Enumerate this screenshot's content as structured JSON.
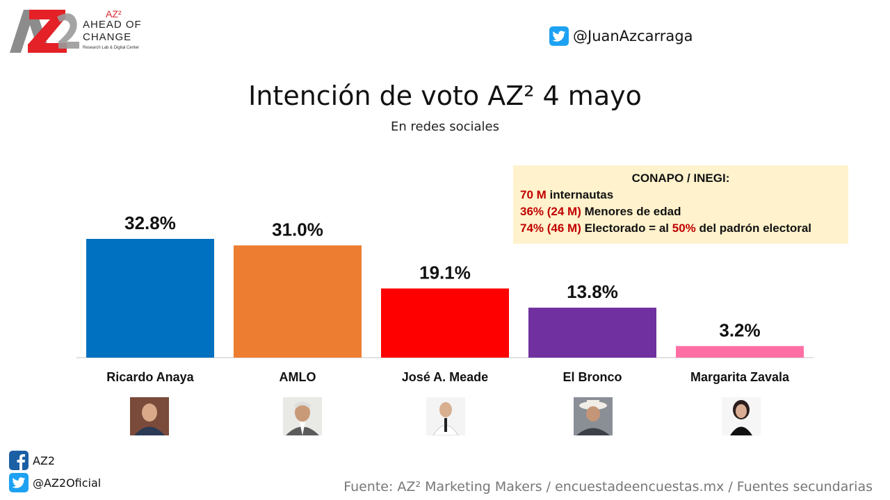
{
  "logo": {
    "mark": "AZ2",
    "superscript": "AZ²",
    "line1": "AHEAD OF",
    "line2": "CHANGE",
    "tagline": "Research Lab & Digital Center"
  },
  "twitter_top": {
    "icon": "twitter-icon",
    "handle": "@JuanAzcarraga"
  },
  "info_box": {
    "heading": "CONAPO / INEGI:",
    "rows": [
      {
        "red": "70 M",
        "text": " internautas"
      },
      {
        "red": "36% (24 M)",
        "text": " Menores de edad"
      },
      {
        "red": "74% (46 M)",
        "text": " Electorado  = al ",
        "red2": "50%",
        "text2": " del padrón  electoral"
      }
    ]
  },
  "chart_data": {
    "type": "bar",
    "title": "Intención de voto AZ² 4 mayo",
    "subtitle": "En redes sociales",
    "categories": [
      "Ricardo Anaya",
      "AMLO",
      "José A. Meade",
      "El Bronco",
      "Margarita Zavala"
    ],
    "values": [
      32.8,
      31.0,
      19.1,
      13.8,
      3.2
    ],
    "value_labels": [
      "32.8%",
      "31.0%",
      "19.1%",
      "13.8%",
      "3.2%"
    ],
    "colors": [
      "#0070c0",
      "#ed7d31",
      "#ff0000",
      "#7030a0",
      "#ff6fa3"
    ],
    "ylim": [
      0,
      35
    ],
    "grid": false,
    "legend": "none"
  },
  "social": [
    {
      "icon": "facebook-icon",
      "label": "AZ2"
    },
    {
      "icon": "twitter-icon",
      "label": "@AZ2Oficial"
    }
  ],
  "footer": "Fuente: AZ² Marketing Makers / encuestadeencuestas.mx / Fuentes secundarias"
}
